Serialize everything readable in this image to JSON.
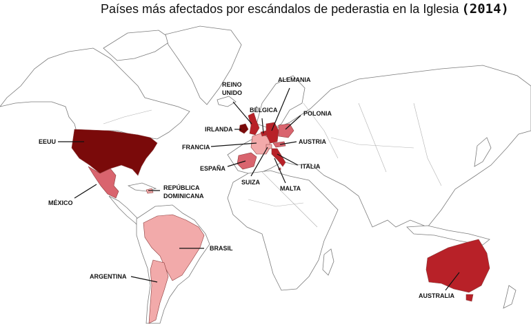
{
  "title": {
    "text": "Países más afectados por escándalos de pederastia en la Iglesia",
    "year": "(2014)"
  },
  "palette": {
    "dark": "#7a0a0a",
    "medium": "#b82128",
    "light": "#d9646e",
    "pale": "#f2aaaa",
    "land": "#ffffff",
    "outline": "#7a7a7a"
  },
  "countries": [
    {
      "id": "eeuu",
      "label": "EEUU",
      "level": "dark"
    },
    {
      "id": "mexico",
      "label": "MÉXICO",
      "level": "light"
    },
    {
      "id": "republica-dominicana",
      "label": "REPÚBLICA DOMINICANA",
      "label_lines": [
        "REPÚBLICA",
        "DOMINICANA"
      ],
      "level": "pale"
    },
    {
      "id": "brasil",
      "label": "BRASIL",
      "level": "pale"
    },
    {
      "id": "argentina",
      "label": "ARGENTINA",
      "level": "pale"
    },
    {
      "id": "irlanda",
      "label": "IRLANDA",
      "level": "dark"
    },
    {
      "id": "reino-unido",
      "label": "REINO UNIDO",
      "label_lines": [
        "REINO",
        "UNIDO"
      ],
      "level": "medium"
    },
    {
      "id": "belgica",
      "label": "BÉLGICA",
      "level": "medium"
    },
    {
      "id": "alemania",
      "label": "ALEMANIA",
      "level": "medium"
    },
    {
      "id": "polonia",
      "label": "POLONIA",
      "level": "light"
    },
    {
      "id": "austria",
      "label": "AUSTRIA",
      "level": "light"
    },
    {
      "id": "francia",
      "label": "FRANCIA",
      "level": "pale"
    },
    {
      "id": "espana",
      "label": "ESPAÑA",
      "level": "light"
    },
    {
      "id": "suiza",
      "label": "SUIZA",
      "level": "pale"
    },
    {
      "id": "italia",
      "label": "ITALIA",
      "level": "medium"
    },
    {
      "id": "malta",
      "label": "MALTA",
      "level": "light"
    },
    {
      "id": "australia",
      "label": "AUSTRALIA",
      "level": "medium"
    }
  ]
}
